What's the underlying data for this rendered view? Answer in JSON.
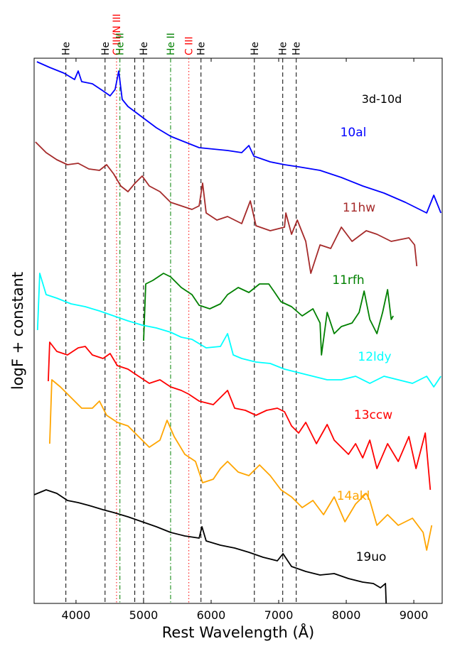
{
  "chart_data": {
    "type": "line",
    "xlabel": "Rest Wavelength (Å)",
    "ylabel": "logF + constant",
    "annotation": "3d-10d",
    "xlim": [
      3380,
      9420
    ],
    "ylim": [
      0,
      768
    ],
    "xticks": [
      4000,
      5000,
      6000,
      7000,
      8000,
      9000
    ],
    "lines": [
      {
        "label": "He",
        "x": 3850,
        "color": "#000000",
        "style": "dashed"
      },
      {
        "label": "He",
        "x": 4430,
        "color": "#000000",
        "style": "dashed"
      },
      {
        "label": "C III/N III",
        "x": 4600,
        "color": "#ff0000",
        "style": "dotted"
      },
      {
        "label": "He II",
        "x": 4650,
        "color": "#008000",
        "style": "dashdot"
      },
      {
        "label": null,
        "x": 4870,
        "color": "#000000",
        "style": "dashed"
      },
      {
        "label": "He",
        "x": 5000,
        "color": "#000000",
        "style": "dashed"
      },
      {
        "label": "He II",
        "x": 5400,
        "color": "#008000",
        "style": "dashdot"
      },
      {
        "label": "C III",
        "x": 5670,
        "color": "#ff0000",
        "style": "dotted"
      },
      {
        "label": "He",
        "x": 5850,
        "color": "#000000",
        "style": "dashed"
      },
      {
        "label": "He",
        "x": 6640,
        "color": "#000000",
        "style": "dashed"
      },
      {
        "label": "He",
        "x": 7060,
        "color": "#000000",
        "style": "dashed"
      },
      {
        "label": "He",
        "x": 7260,
        "color": "#000000",
        "style": "dashed"
      }
    ],
    "series": [
      {
        "name": "10al",
        "color": "#0000ff",
        "x": [
          3421,
          3610,
          3821,
          3979,
          4032,
          4084,
          4242,
          4400,
          4505,
          4579,
          4632,
          4684,
          4769,
          4979,
          5190,
          5400,
          5611,
          5822,
          6032,
          6243,
          6453,
          6559,
          6633,
          6875,
          7086,
          7296,
          7612,
          7928,
          8244,
          8559,
          8875,
          9191,
          9296,
          9401
        ],
        "values": [
          763,
          755,
          747,
          738,
          750,
          735,
          732,
          722,
          715,
          724,
          750,
          710,
          700,
          685,
          670,
          658,
          650,
          642,
          640,
          638,
          635,
          645,
          630,
          622,
          618,
          615,
          610,
          600,
          588,
          578,
          565,
          550,
          575,
          550
        ]
      },
      {
        "name": "11hw",
        "color": "#a52a2a",
        "x": [
          3400,
          3558,
          3716,
          3874,
          4032,
          4190,
          4347,
          4453,
          4558,
          4663,
          4769,
          4874,
          4979,
          5085,
          5243,
          5400,
          5558,
          5716,
          5822,
          5874,
          5927,
          6085,
          6243,
          6453,
          6580,
          6664,
          6875,
          7086,
          7106,
          7190,
          7275,
          7401,
          7475,
          7612,
          7770,
          7928,
          8086,
          8296,
          8454,
          8665,
          8928,
          9012,
          9044
        ],
        "values": [
          650,
          635,
          625,
          618,
          620,
          612,
          610,
          618,
          605,
          588,
          580,
          592,
          602,
          588,
          580,
          565,
          560,
          555,
          560,
          592,
          550,
          540,
          545,
          535,
          567,
          532,
          525,
          530,
          550,
          520,
          540,
          510,
          465,
          505,
          500,
          530,
          510,
          525,
          520,
          510,
          515,
          505,
          475
        ]
      },
      {
        "name": "11rfh",
        "color": "#008000",
        "x": [
          5000,
          5032,
          5137,
          5295,
          5400,
          5558,
          5716,
          5822,
          5980,
          6138,
          6243,
          6401,
          6559,
          6717,
          6854,
          6927,
          7033,
          7190,
          7348,
          7507,
          7612,
          7633,
          7717,
          7822,
          7928,
          8086,
          8191,
          8265,
          8349,
          8454,
          8538,
          8612,
          8665,
          8696
        ],
        "values": [
          370,
          450,
          455,
          465,
          460,
          445,
          435,
          420,
          415,
          422,
          435,
          445,
          438,
          450,
          450,
          440,
          425,
          418,
          405,
          415,
          395,
          350,
          410,
          380,
          390,
          395,
          410,
          440,
          400,
          380,
          410,
          442,
          400,
          405
        ]
      },
      {
        "name": "12ldy",
        "color": "#00ffff",
        "x": [
          3431,
          3463,
          3558,
          3716,
          3926,
          4137,
          4347,
          4558,
          4769,
          4979,
          5190,
          5400,
          5558,
          5716,
          5927,
          6138,
          6243,
          6327,
          6453,
          6664,
          6875,
          7086,
          7296,
          7507,
          7717,
          7928,
          8138,
          8349,
          8559,
          8770,
          8980,
          9191,
          9296,
          9401
        ],
        "values": [
          385,
          465,
          435,
          430,
          422,
          418,
          412,
          405,
          398,
          392,
          388,
          382,
          375,
          372,
          360,
          362,
          380,
          350,
          345,
          340,
          338,
          330,
          325,
          320,
          315,
          315,
          320,
          310,
          320,
          315,
          310,
          320,
          305,
          320
        ]
      },
      {
        "name": "13ccw",
        "color": "#ff0000",
        "x": [
          3589,
          3610,
          3716,
          3874,
          4032,
          4137,
          4242,
          4400,
          4505,
          4611,
          4769,
          4926,
          5085,
          5243,
          5400,
          5558,
          5664,
          5822,
          6032,
          6243,
          6348,
          6506,
          6664,
          6822,
          6980,
          7086,
          7190,
          7296,
          7401,
          7559,
          7717,
          7822,
          7928,
          8033,
          8138,
          8244,
          8349,
          8454,
          8612,
          8770,
          8928,
          9033,
          9170,
          9244
        ],
        "values": [
          313,
          368,
          355,
          350,
          360,
          362,
          350,
          345,
          352,
          335,
          330,
          320,
          310,
          315,
          305,
          300,
          295,
          285,
          280,
          300,
          275,
          272,
          265,
          272,
          275,
          270,
          250,
          240,
          255,
          225,
          252,
          230,
          220,
          210,
          225,
          205,
          230,
          190,
          225,
          200,
          235,
          190,
          240,
          160
        ]
      },
      {
        "name": "14akl",
        "color": "#ffa500",
        "x": [
          3610,
          3642,
          3768,
          3926,
          4084,
          4242,
          4347,
          4453,
          4611,
          4769,
          4926,
          5085,
          5243,
          5348,
          5453,
          5611,
          5769,
          5874,
          6032,
          6138,
          6243,
          6401,
          6559,
          6717,
          6875,
          7033,
          7190,
          7348,
          7507,
          7664,
          7822,
          7980,
          8138,
          8296,
          8349,
          8454,
          8612,
          8770,
          8980,
          9138,
          9191,
          9265
        ],
        "values": [
          225,
          315,
          305,
          290,
          275,
          275,
          285,
          265,
          255,
          250,
          235,
          220,
          230,
          258,
          235,
          210,
          200,
          170,
          175,
          190,
          200,
          185,
          180,
          195,
          180,
          160,
          150,
          135,
          145,
          125,
          150,
          115,
          140,
          155,
          145,
          110,
          125,
          110,
          120,
          100,
          75,
          110
        ]
      },
      {
        "name": "19uo",
        "color": "#000000",
        "x": [
          3379,
          3558,
          3716,
          3874,
          4032,
          4190,
          4400,
          4558,
          4769,
          4979,
          5190,
          5400,
          5611,
          5822,
          5864,
          5927,
          6138,
          6348,
          6559,
          6769,
          6980,
          7064,
          7190,
          7401,
          7612,
          7822,
          8033,
          8244,
          8401,
          8507,
          8580,
          8591
        ],
        "values": [
          153,
          160,
          155,
          145,
          142,
          138,
          132,
          128,
          122,
          115,
          108,
          100,
          95,
          92,
          108,
          88,
          82,
          78,
          72,
          65,
          60,
          70,
          52,
          45,
          40,
          42,
          35,
          30,
          28,
          22,
          28,
          0
        ]
      }
    ]
  }
}
